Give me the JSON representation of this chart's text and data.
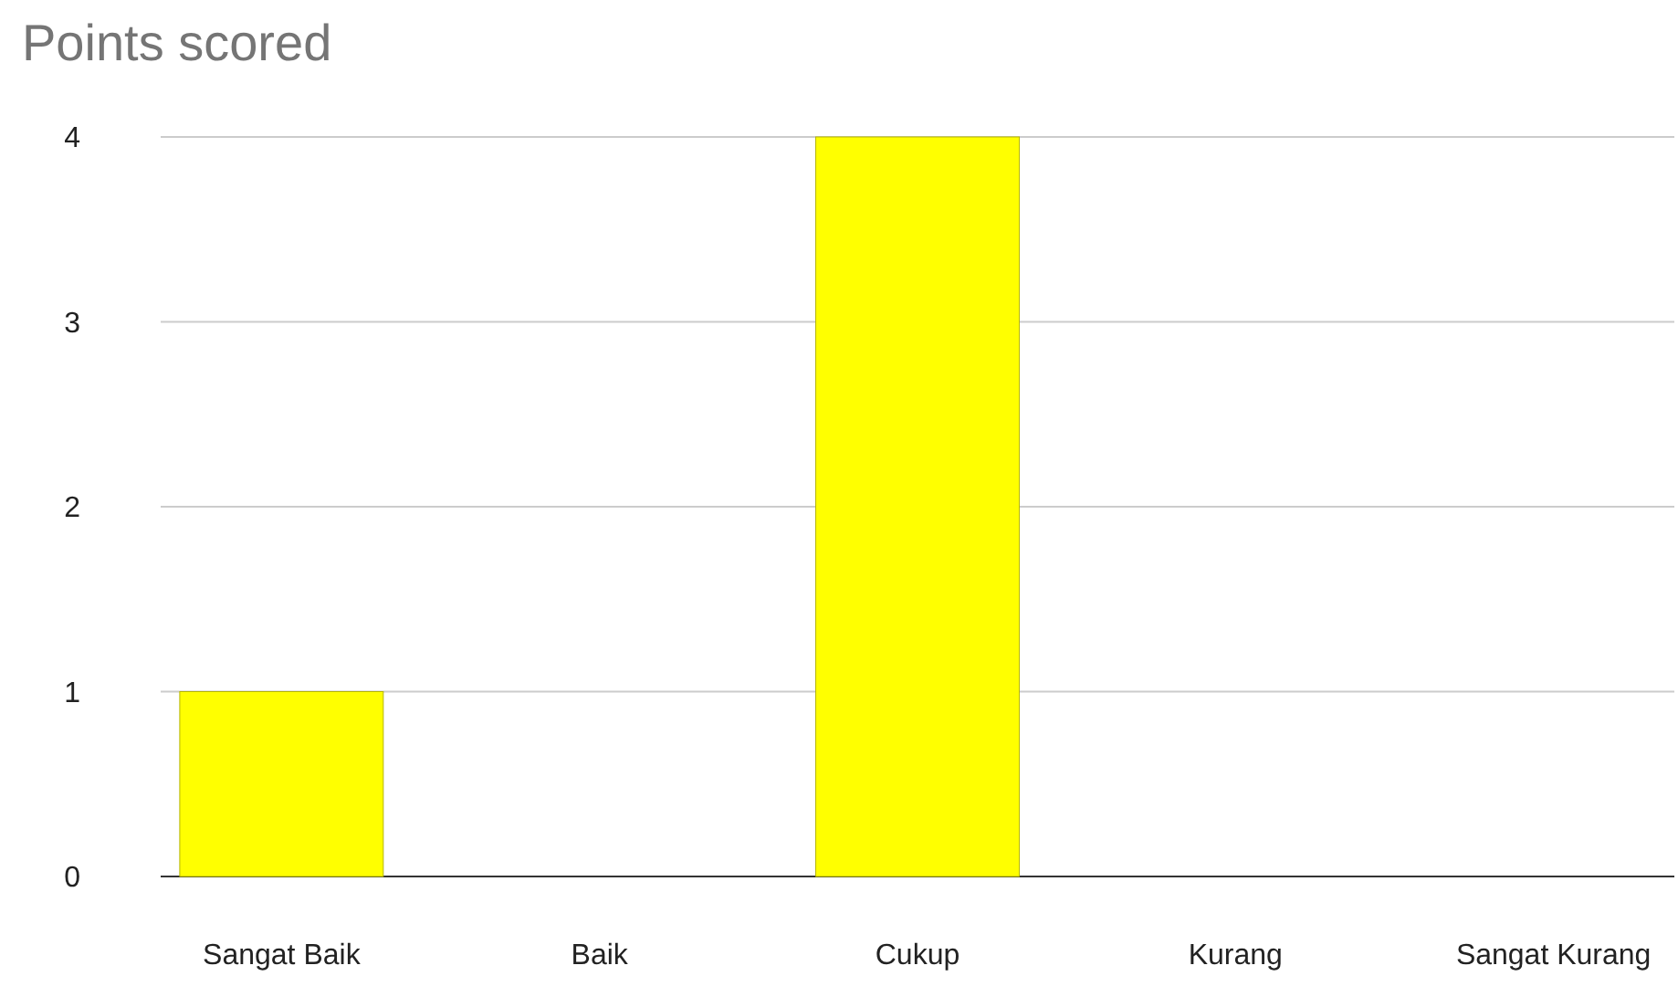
{
  "chart_data": {
    "type": "bar",
    "title": "Points scored",
    "categories": [
      "Sangat Baik",
      "Baik",
      "Cukup",
      "Kurang",
      "Sangat Kurang"
    ],
    "values": [
      1,
      0,
      4,
      0,
      0
    ],
    "color": "#ffff00",
    "ylim": [
      0,
      4
    ],
    "yticks": [
      0,
      1,
      2,
      3,
      4
    ],
    "grid": "y"
  }
}
